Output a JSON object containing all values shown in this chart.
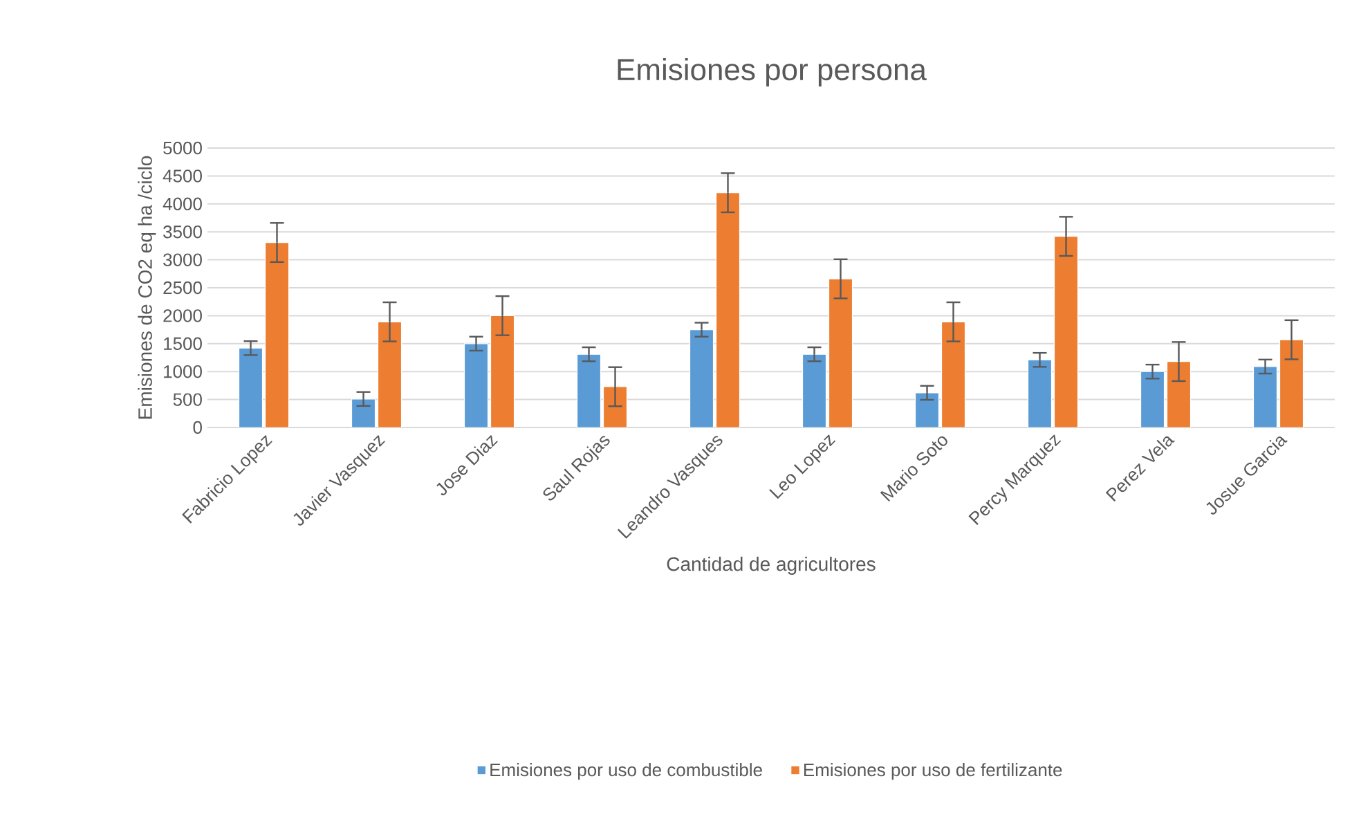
{
  "chart_data": {
    "type": "bar",
    "title": "Emisiones por persona",
    "xlabel": "Cantidad de agricultores",
    "ylabel": "Emisiones de CO2 eq ha /ciclo",
    "categories": [
      "Fabricio Lopez",
      "Javier Vasquez",
      "Jose Diaz",
      "Saul Rojas",
      "Leandro Vasques",
      "Leo Lopez",
      "Mario Soto",
      "Percy Marquez",
      "Perez Vela",
      "Josue Garcia"
    ],
    "series": [
      {
        "name": "Emisiones por uso de combustible",
        "color": "#5b9bd5",
        "values": [
          1420,
          510,
          1500,
          1310,
          1750,
          1310,
          620,
          1210,
          1000,
          1090
        ],
        "errors": [
          125,
          125,
          125,
          125,
          125,
          125,
          125,
          125,
          125,
          125
        ]
      },
      {
        "name": "Emisiones por uso de fertilizante",
        "color": "#ed7d31",
        "values": [
          3310,
          1890,
          2000,
          730,
          4200,
          2660,
          1890,
          3420,
          1180,
          1570
        ],
        "errors": [
          350,
          350,
          350,
          350,
          350,
          350,
          350,
          350,
          350,
          350
        ]
      }
    ],
    "ylim": [
      0,
      5000
    ],
    "yticks": [
      0,
      500,
      1000,
      1500,
      2000,
      2500,
      3000,
      3500,
      4000,
      4500,
      5000
    ],
    "grid": "y",
    "legend": "bottom"
  }
}
